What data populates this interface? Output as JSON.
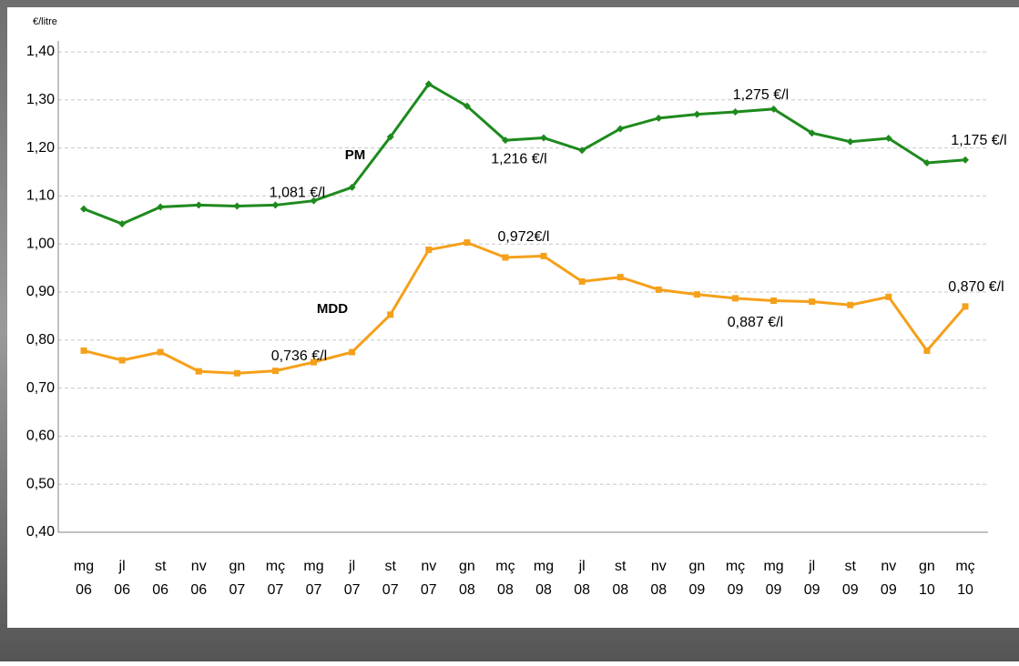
{
  "chart_data": {
    "type": "line",
    "y_label": "€/litre",
    "categories": [
      [
        "mg",
        "06"
      ],
      [
        "jl",
        "06"
      ],
      [
        "st",
        "06"
      ],
      [
        "nv",
        "06"
      ],
      [
        "gn",
        "07"
      ],
      [
        "mç",
        "07"
      ],
      [
        "mg",
        "07"
      ],
      [
        "jl",
        "07"
      ],
      [
        "st",
        "07"
      ],
      [
        "nv",
        "07"
      ],
      [
        "gn",
        "08"
      ],
      [
        "mç",
        "08"
      ],
      [
        "mg",
        "08"
      ],
      [
        "jl",
        "08"
      ],
      [
        "st",
        "08"
      ],
      [
        "nv",
        "08"
      ],
      [
        "gn",
        "09"
      ],
      [
        "mç",
        "09"
      ],
      [
        "mg",
        "09"
      ],
      [
        "jl",
        "09"
      ],
      [
        "st",
        "09"
      ],
      [
        "nv",
        "09"
      ],
      [
        "gn",
        "10"
      ],
      [
        "mç",
        "10"
      ]
    ],
    "series": [
      {
        "name": "PM",
        "color": "#1e8a1e",
        "marker": "diamond",
        "values": [
          1.073,
          1.042,
          1.077,
          1.081,
          1.079,
          1.081,
          1.09,
          1.118,
          1.223,
          1.333,
          1.287,
          1.216,
          1.221,
          1.195,
          1.24,
          1.262,
          1.27,
          1.275,
          1.281,
          1.231,
          1.213,
          1.22,
          1.169,
          1.175
        ],
        "value_labels": [
          null,
          null,
          null,
          null,
          null,
          "1,081 €/l",
          null,
          null,
          null,
          null,
          null,
          "1,216 €/l",
          null,
          null,
          null,
          null,
          null,
          "1,275 €/l",
          null,
          null,
          null,
          null,
          null,
          "1,175 €/l"
        ]
      },
      {
        "name": "MDD",
        "color": "#f5a01a",
        "marker": "square",
        "values": [
          0.778,
          0.758,
          0.775,
          0.735,
          0.731,
          0.736,
          0.754,
          0.775,
          0.853,
          0.988,
          1.003,
          0.972,
          0.975,
          0.922,
          0.931,
          0.905,
          0.895,
          0.887,
          0.882,
          0.88,
          0.873,
          0.89,
          0.778,
          0.87
        ],
        "value_labels": [
          null,
          null,
          null,
          null,
          null,
          "0,736 €/l",
          null,
          null,
          null,
          null,
          null,
          "0,972€/l",
          null,
          null,
          null,
          null,
          null,
          "0,887 €/l",
          null,
          null,
          null,
          null,
          null,
          "0,870 €/l"
        ]
      }
    ],
    "ylim": [
      0.4,
      1.4
    ],
    "yticks": [
      {
        "value": 0.4,
        "label": "0,40"
      },
      {
        "value": 0.5,
        "label": "0,50"
      },
      {
        "value": 0.6,
        "label": "0,60"
      },
      {
        "value": 0.7,
        "label": "0,70"
      },
      {
        "value": 0.8,
        "label": "0,80"
      },
      {
        "value": 0.9,
        "label": "0,90"
      },
      {
        "value": 1.0,
        "label": "1,00"
      },
      {
        "value": 1.1,
        "label": "1,10"
      },
      {
        "value": 1.2,
        "label": "1,20"
      },
      {
        "value": 1.3,
        "label": "1,30"
      },
      {
        "value": 1.4,
        "label": "1,40"
      }
    ],
    "grid": true
  }
}
